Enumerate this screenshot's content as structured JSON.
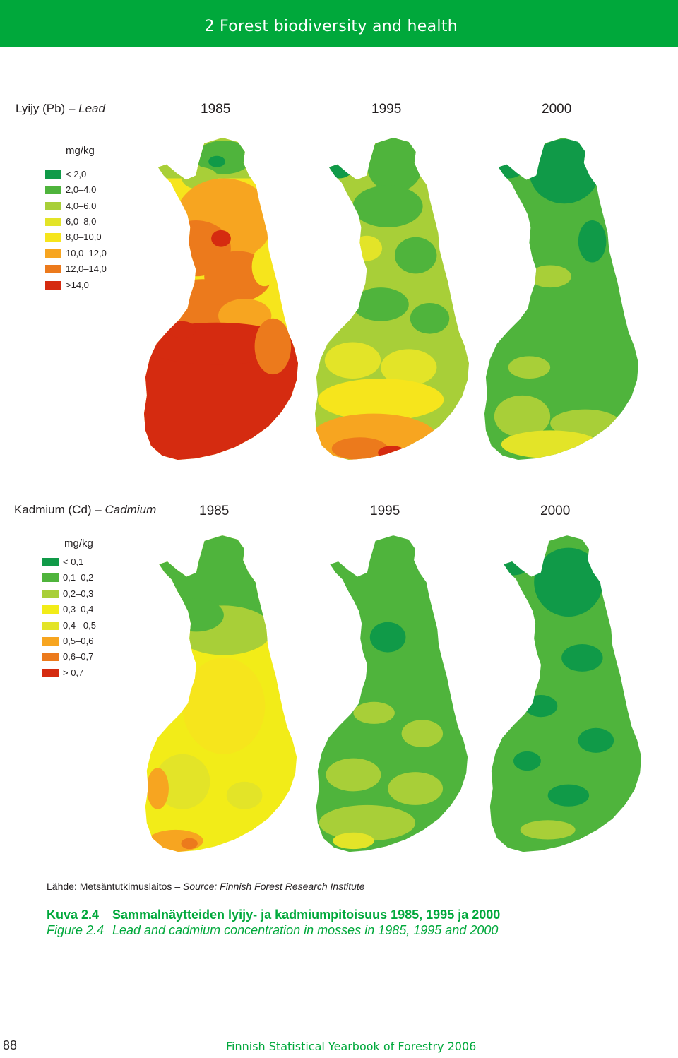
{
  "header": {
    "title": "2 Forest biodiversity and health"
  },
  "lead": {
    "title_fi": "Lyijy (Pb) –",
    "title_en": "Lead",
    "years": [
      "1985",
      "1995",
      "2000"
    ],
    "unit": "mg/kg",
    "legend": [
      {
        "label": "< 2,0",
        "color": "#109a48"
      },
      {
        "label": "2,0–4,0",
        "color": "#4fb43c"
      },
      {
        "label": "4,0–6,0",
        "color": "#a8cf38"
      },
      {
        "label": "6,0–8,0",
        "color": "#e3e428"
      },
      {
        "label": "8,0–10,0",
        "color": "#f6e51c"
      },
      {
        "label": "10,0–12,0",
        "color": "#f7a520"
      },
      {
        "label": "12,0–14,0",
        "color": "#ec7a1c"
      },
      {
        "label": ">14,0",
        "color": "#d52b10"
      }
    ]
  },
  "cadmium": {
    "title_fi": "Kadmium (Cd) –",
    "title_en": "Cadmium",
    "years": [
      "1985",
      "1995",
      "2000"
    ],
    "unit": "mg/kg",
    "legend": [
      {
        "label": "< 0,1",
        "color": "#109a48"
      },
      {
        "label": "0,1–0,2",
        "color": "#4fb43c"
      },
      {
        "label": "0,2–0,3",
        "color": "#a8cf38"
      },
      {
        "label": "0,3–0,4",
        "color": "#f2ec18"
      },
      {
        "label": "0,4 –0,5",
        "color": "#e3e428"
      },
      {
        "label": "0,5–0,6",
        "color": "#f7a520"
      },
      {
        "label": "0,6–0,7",
        "color": "#ec7a1c"
      },
      {
        "label": "> 0,7",
        "color": "#d52b10"
      }
    ]
  },
  "source": {
    "fi": "Lähde: Metsäntutkimuslaitos –",
    "en": "Source: Finnish Forest Research Institute"
  },
  "caption": {
    "fi_number": "Kuva 2.4",
    "fi_text": "Sammalnäytteiden lyijy- ja kadmiumpitoisuus 1985, 1995 ja 2000",
    "en_number": "Figure 2.4",
    "en_text": "Lead and cadmium concentration in mosses in 1985, 1995 and 2000"
  },
  "footer": {
    "page": "88",
    "title": "Finnish Statistical Yearbook of Forestry 2006"
  }
}
